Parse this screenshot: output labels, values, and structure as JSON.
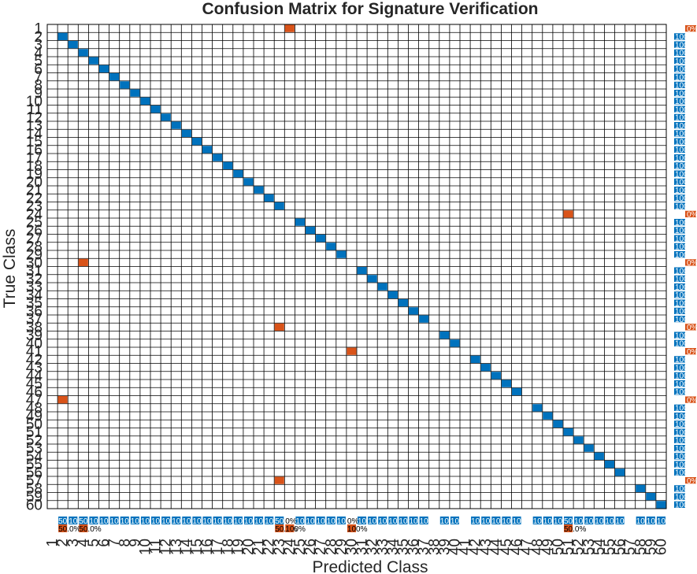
{
  "chart_data": {
    "type": "heatmap",
    "title": "Confusion Matrix for Signature Verification",
    "xlabel": "Predicted Class",
    "ylabel": "True Class",
    "classes": [
      "1",
      "2",
      "3",
      "4",
      "5",
      "6",
      "7",
      "8",
      "9",
      "10",
      "11",
      "12",
      "13",
      "14",
      "15",
      "16",
      "17",
      "18",
      "19",
      "20",
      "21",
      "22",
      "23",
      "24",
      "25",
      "26",
      "27",
      "28",
      "29",
      "30",
      "31",
      "32",
      "33",
      "34",
      "35",
      "36",
      "37",
      "38",
      "39",
      "40",
      "41",
      "42",
      "43",
      "44",
      "45",
      "46",
      "47",
      "48",
      "49",
      "50",
      "51",
      "52",
      "53",
      "54",
      "55",
      "56",
      "57",
      "58",
      "59",
      "60"
    ],
    "correct_color": "#0072bd",
    "error_color": "#d95319",
    "diagonal_counts": [
      0,
      1,
      1,
      1,
      1,
      1,
      1,
      1,
      1,
      1,
      1,
      1,
      1,
      1,
      1,
      1,
      1,
      1,
      1,
      1,
      1,
      1,
      1,
      0,
      1,
      1,
      1,
      1,
      1,
      0,
      1,
      1,
      1,
      1,
      1,
      1,
      1,
      0,
      1,
      1,
      0,
      1,
      1,
      1,
      1,
      1,
      0,
      1,
      1,
      1,
      1,
      1,
      1,
      1,
      1,
      1,
      0,
      1,
      1,
      1
    ],
    "off_diagonal": [
      {
        "true": 1,
        "predicted": 24,
        "count": 1
      },
      {
        "true": 24,
        "predicted": 51,
        "count": 1
      },
      {
        "true": 30,
        "predicted": 4,
        "count": 1
      },
      {
        "true": 38,
        "predicted": 23,
        "count": 1
      },
      {
        "true": 41,
        "predicted": 30,
        "count": 1
      },
      {
        "true": 47,
        "predicted": 2,
        "count": 1
      },
      {
        "true": 57,
        "predicted": 23,
        "count": 1
      }
    ],
    "row_summary_text": [
      "0%",
      "100%"
    ],
    "col_summary_text": [
      "50.0%",
      "100%",
      "0%"
    ],
    "grid": true
  }
}
